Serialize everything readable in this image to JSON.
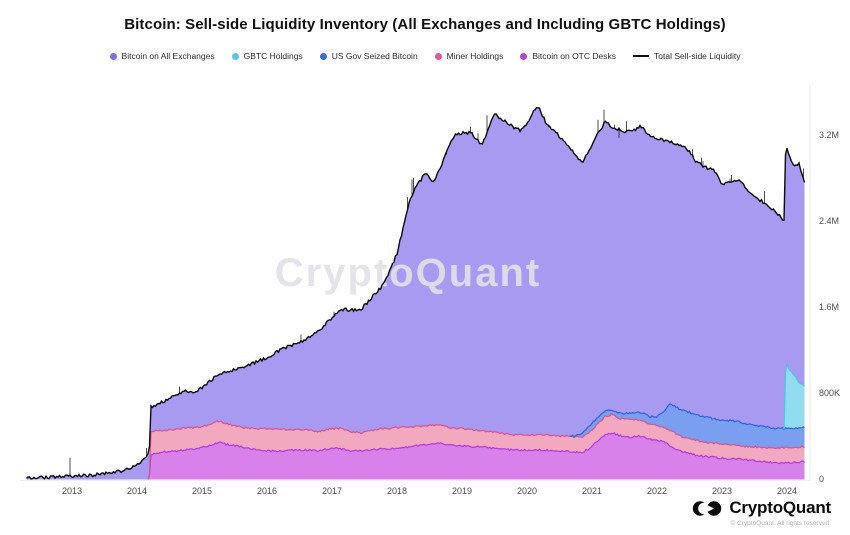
{
  "title": "Bitcoin: Sell-side Liquidity Inventory (All Exchanges and Including GBTC Holdings)",
  "watermark": "CryptoQuant",
  "legend": [
    {
      "label": "Bitcoin on All Exchanges",
      "color": "#7d6be9",
      "type": "dot"
    },
    {
      "label": "GBTC Holdings",
      "color": "#56c9e2",
      "type": "dot"
    },
    {
      "label": "US Gov Seized Bitcoin",
      "color": "#3d68e2",
      "type": "dot"
    },
    {
      "label": "Miner Holdings",
      "color": "#e2558e",
      "type": "dot"
    },
    {
      "label": "Bitcoin on OTC Desks",
      "color": "#ab47dd",
      "type": "dot"
    },
    {
      "label": "Total Sell-side Liquidity",
      "color": "#111111",
      "type": "line"
    }
  ],
  "footer": {
    "logo_text": "CryptoQuant",
    "copyright": "© CryptoQuant. All rights reserved."
  },
  "chart_data": {
    "type": "area",
    "stacked": true,
    "unit": "BTC, millions",
    "title": "Bitcoin: Sell-side Liquidity Inventory (All Exchanges and Including GBTC Holdings)",
    "x_range": [
      2012.3,
      2024.27
    ],
    "x_tick_labels": [
      "2013",
      "2014",
      "2015",
      "2016",
      "2017",
      "2018",
      "2019",
      "2020",
      "2021",
      "2022",
      "2023",
      "2024"
    ],
    "x_tick_values": [
      2013,
      2014,
      2015,
      2016,
      2017,
      2018,
      2019,
      2020,
      2021,
      2022,
      2023,
      2024
    ],
    "y_ticks": [
      {
        "value": 0,
        "label": "0"
      },
      {
        "value": 0.8,
        "label": "800K"
      },
      {
        "value": 1.6,
        "label": "1.6M"
      },
      {
        "value": 2.4,
        "label": "2.4M"
      },
      {
        "value": 3.2,
        "label": "3.2M"
      }
    ],
    "legend_position": "top",
    "grid": false,
    "x": [
      2012.3,
      2012.6,
      2013.0,
      2013.3,
      2013.6,
      2013.8,
      2013.95,
      2014.05,
      2014.15,
      2014.19,
      2014.21,
      2014.4,
      2014.6,
      2014.75,
      2014.9,
      2015.1,
      2015.25,
      2015.4,
      2015.6,
      2015.8,
      2016.0,
      2016.2,
      2016.4,
      2016.6,
      2016.8,
      2017.0,
      2017.15,
      2017.3,
      2017.45,
      2017.6,
      2017.75,
      2017.9,
      2018.0,
      2018.1,
      2018.2,
      2018.3,
      2018.45,
      2018.55,
      2018.65,
      2018.8,
      2018.9,
      2019.0,
      2019.15,
      2019.3,
      2019.4,
      2019.5,
      2019.65,
      2019.8,
      2019.9,
      2020.0,
      2020.1,
      2020.18,
      2020.3,
      2020.45,
      2020.6,
      2020.75,
      2020.85,
      2020.95,
      2021.1,
      2021.2,
      2021.3,
      2021.45,
      2021.6,
      2021.75,
      2021.9,
      2022.0,
      2022.1,
      2022.2,
      2022.35,
      2022.5,
      2022.6,
      2022.75,
      2022.9,
      2023.0,
      2023.1,
      2023.25,
      2023.35,
      2023.5,
      2023.65,
      2023.8,
      2023.9,
      2023.96,
      2023.98,
      2024.03,
      2024.08,
      2024.13,
      2024.18,
      2024.22,
      2024.27
    ],
    "series": [
      {
        "name": "Bitcoin on OTC Desks",
        "fill": "#d981ea",
        "line": "#b23ad9",
        "values": [
          0,
          0,
          0,
          0,
          0,
          0,
          0,
          0,
          0,
          0,
          0.23,
          0.25,
          0.26,
          0.27,
          0.28,
          0.31,
          0.34,
          0.32,
          0.3,
          0.28,
          0.26,
          0.26,
          0.27,
          0.27,
          0.26,
          0.29,
          0.28,
          0.26,
          0.26,
          0.27,
          0.28,
          0.28,
          0.28,
          0.29,
          0.3,
          0.31,
          0.32,
          0.33,
          0.33,
          0.32,
          0.31,
          0.31,
          0.3,
          0.3,
          0.29,
          0.29,
          0.28,
          0.27,
          0.27,
          0.27,
          0.27,
          0.27,
          0.27,
          0.26,
          0.26,
          0.25,
          0.25,
          0.28,
          0.36,
          0.41,
          0.43,
          0.4,
          0.39,
          0.4,
          0.37,
          0.36,
          0.35,
          0.31,
          0.26,
          0.24,
          0.22,
          0.21,
          0.2,
          0.195,
          0.19,
          0.185,
          0.18,
          0.17,
          0.16,
          0.15,
          0.15,
          0.15,
          0.15,
          0.15,
          0.15,
          0.155,
          0.155,
          0.16,
          0.16
        ]
      },
      {
        "name": "Miner Holdings",
        "fill": "#f2a9c0",
        "line": "#d9538f",
        "values": [
          0,
          0,
          0,
          0,
          0,
          0,
          0,
          0,
          0,
          0,
          0.21,
          0.2,
          0.2,
          0.21,
          0.2,
          0.19,
          0.2,
          0.19,
          0.18,
          0.19,
          0.21,
          0.2,
          0.19,
          0.19,
          0.18,
          0.18,
          0.19,
          0.18,
          0.17,
          0.18,
          0.19,
          0.19,
          0.2,
          0.19,
          0.18,
          0.18,
          0.17,
          0.17,
          0.17,
          0.16,
          0.16,
          0.16,
          0.16,
          0.15,
          0.15,
          0.15,
          0.14,
          0.14,
          0.14,
          0.14,
          0.14,
          0.14,
          0.14,
          0.14,
          0.14,
          0.14,
          0.14,
          0.15,
          0.16,
          0.17,
          0.17,
          0.16,
          0.16,
          0.15,
          0.14,
          0.14,
          0.13,
          0.14,
          0.14,
          0.14,
          0.14,
          0.13,
          0.13,
          0.125,
          0.13,
          0.13,
          0.125,
          0.13,
          0.135,
          0.14,
          0.14,
          0.14,
          0.14,
          0.14,
          0.14,
          0.14,
          0.14,
          0.14,
          0.14
        ]
      },
      {
        "name": "US Gov Seized Bitcoin",
        "fill": "#7b9ff0",
        "line": "#2e62e2",
        "values": [
          0,
          0,
          0,
          0,
          0,
          0,
          0,
          0,
          0,
          0,
          0,
          0,
          0,
          0,
          0,
          0,
          0,
          0,
          0,
          0,
          0,
          0,
          0,
          0,
          0,
          0,
          0,
          0,
          0,
          0,
          0,
          0,
          0,
          0,
          0,
          0,
          0,
          0,
          0,
          0,
          0,
          0,
          0,
          0,
          0,
          0,
          0,
          0,
          0,
          0,
          0,
          0,
          0,
          0,
          0,
          0.01,
          0.04,
          0.06,
          0.06,
          0.05,
          0.04,
          0.05,
          0.06,
          0.07,
          0.07,
          0.08,
          0.15,
          0.25,
          0.25,
          0.24,
          0.24,
          0.235,
          0.23,
          0.23,
          0.225,
          0.22,
          0.21,
          0.2,
          0.19,
          0.18,
          0.18,
          0.18,
          0.18,
          0.18,
          0.18,
          0.18,
          0.18,
          0.18,
          0.18
        ]
      },
      {
        "name": "GBTC Holdings",
        "fill": "#92dcef",
        "line": "#4cc4e0",
        "values": [
          0,
          0,
          0,
          0,
          0,
          0,
          0,
          0,
          0,
          0,
          0,
          0,
          0,
          0,
          0,
          0,
          0,
          0,
          0,
          0,
          0,
          0,
          0,
          0,
          0,
          0,
          0,
          0,
          0,
          0,
          0,
          0,
          0,
          0,
          0,
          0,
          0,
          0,
          0,
          0,
          0,
          0,
          0,
          0,
          0,
          0,
          0,
          0,
          0,
          0,
          0,
          0,
          0,
          0,
          0,
          0,
          0,
          0,
          0,
          0,
          0,
          0,
          0,
          0,
          0,
          0,
          0,
          0,
          0,
          0,
          0,
          0,
          0,
          0,
          0,
          0,
          0,
          0,
          0,
          0,
          0,
          0,
          0.62,
          0.56,
          0.51,
          0.47,
          0.43,
          0.41,
          0.39
        ]
      },
      {
        "name": "Bitcoin on All Exchanges",
        "fill": "#a89af0",
        "line": "#a89af0",
        "values": [
          0.01,
          0.015,
          0.025,
          0.035,
          0.055,
          0.08,
          0.12,
          0.16,
          0.22,
          0.25,
          0.23,
          0.27,
          0.32,
          0.34,
          0.32,
          0.4,
          0.43,
          0.49,
          0.55,
          0.61,
          0.66,
          0.74,
          0.79,
          0.84,
          0.94,
          1.03,
          1.11,
          1.13,
          1.15,
          1.23,
          1.31,
          1.48,
          1.62,
          1.87,
          2.12,
          2.24,
          2.36,
          2.26,
          2.37,
          2.62,
          2.73,
          2.75,
          2.76,
          2.65,
          2.81,
          2.96,
          2.91,
          2.86,
          2.83,
          2.89,
          3.01,
          3.05,
          2.89,
          2.82,
          2.72,
          2.62,
          2.5,
          2.56,
          2.64,
          2.69,
          2.64,
          2.63,
          2.62,
          2.66,
          2.61,
          2.59,
          2.52,
          2.44,
          2.46,
          2.43,
          2.35,
          2.325,
          2.3,
          2.18,
          2.215,
          2.245,
          2.205,
          2.12,
          2.085,
          2.03,
          1.97,
          1.93,
          2.03,
          1.99,
          1.97,
          1.955,
          2.045,
          1.96,
          1.88
        ]
      }
    ],
    "total_line": {
      "name": "Total Sell-side Liquidity",
      "color": "#0b0b0b",
      "note": "sum of all stacked series"
    }
  }
}
